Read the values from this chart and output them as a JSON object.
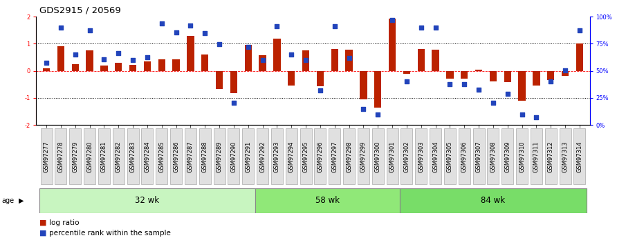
{
  "title": "GDS2915 / 20569",
  "samples": [
    "GSM97277",
    "GSM97278",
    "GSM97279",
    "GSM97280",
    "GSM97281",
    "GSM97282",
    "GSM97283",
    "GSM97284",
    "GSM97285",
    "GSM97286",
    "GSM97287",
    "GSM97288",
    "GSM97289",
    "GSM97290",
    "GSM97291",
    "GSM97292",
    "GSM97293",
    "GSM97294",
    "GSM97295",
    "GSM97296",
    "GSM97297",
    "GSM97298",
    "GSM97299",
    "GSM97300",
    "GSM97301",
    "GSM97302",
    "GSM97303",
    "GSM97304",
    "GSM97305",
    "GSM97306",
    "GSM97307",
    "GSM97308",
    "GSM97309",
    "GSM97310",
    "GSM97311",
    "GSM97312",
    "GSM97313",
    "GSM97314"
  ],
  "log_ratio": [
    0.1,
    0.92,
    0.24,
    0.75,
    0.2,
    0.3,
    0.22,
    0.35,
    0.42,
    0.42,
    1.28,
    0.6,
    -0.68,
    -0.82,
    0.95,
    0.58,
    1.2,
    -0.55,
    0.75,
    -0.58,
    0.8,
    0.78,
    -1.05,
    -1.35,
    1.92,
    -0.1,
    0.8,
    0.78,
    -0.28,
    -0.3,
    0.05,
    -0.4,
    -0.42,
    -1.1,
    -0.55,
    -0.35,
    -0.18,
    1.0
  ],
  "percentile_left_scale": [
    0.3,
    1.6,
    0.6,
    1.5,
    0.42,
    0.65,
    0.4,
    0.5,
    1.75,
    1.42,
    1.68,
    1.38,
    0.98,
    -1.18,
    0.88,
    0.4,
    1.65,
    0.6,
    0.4,
    -0.72,
    1.65,
    0.48,
    -1.4,
    -1.62,
    1.88,
    -0.38,
    1.6,
    1.6,
    -0.5,
    -0.5,
    -0.7,
    -1.18,
    -0.85,
    -1.62,
    -1.72,
    -0.38,
    0.02,
    1.5
  ],
  "groups": [
    {
      "label": "32 wk",
      "start": 0,
      "end": 15,
      "color": "#c8f5c0"
    },
    {
      "label": "58 wk",
      "start": 15,
      "end": 25,
      "color": "#90e878"
    },
    {
      "label": "84 wk",
      "start": 25,
      "end": 38,
      "color": "#78dd68"
    }
  ],
  "ylim_lo": -2,
  "ylim_hi": 2,
  "yticks_left": [
    -2,
    -1,
    0,
    1,
    2
  ],
  "yticks_right_pct": [
    0,
    25,
    50,
    75,
    100
  ],
  "bar_color": "#bb2200",
  "dot_color": "#2244bb",
  "bar_width": 0.5,
  "age_label": "age",
  "legend_log": "log ratio",
  "legend_pct": "percentile rank within the sample",
  "title_fontsize": 9.5,
  "tick_fontsize": 6.0,
  "group_fontsize": 8.5
}
